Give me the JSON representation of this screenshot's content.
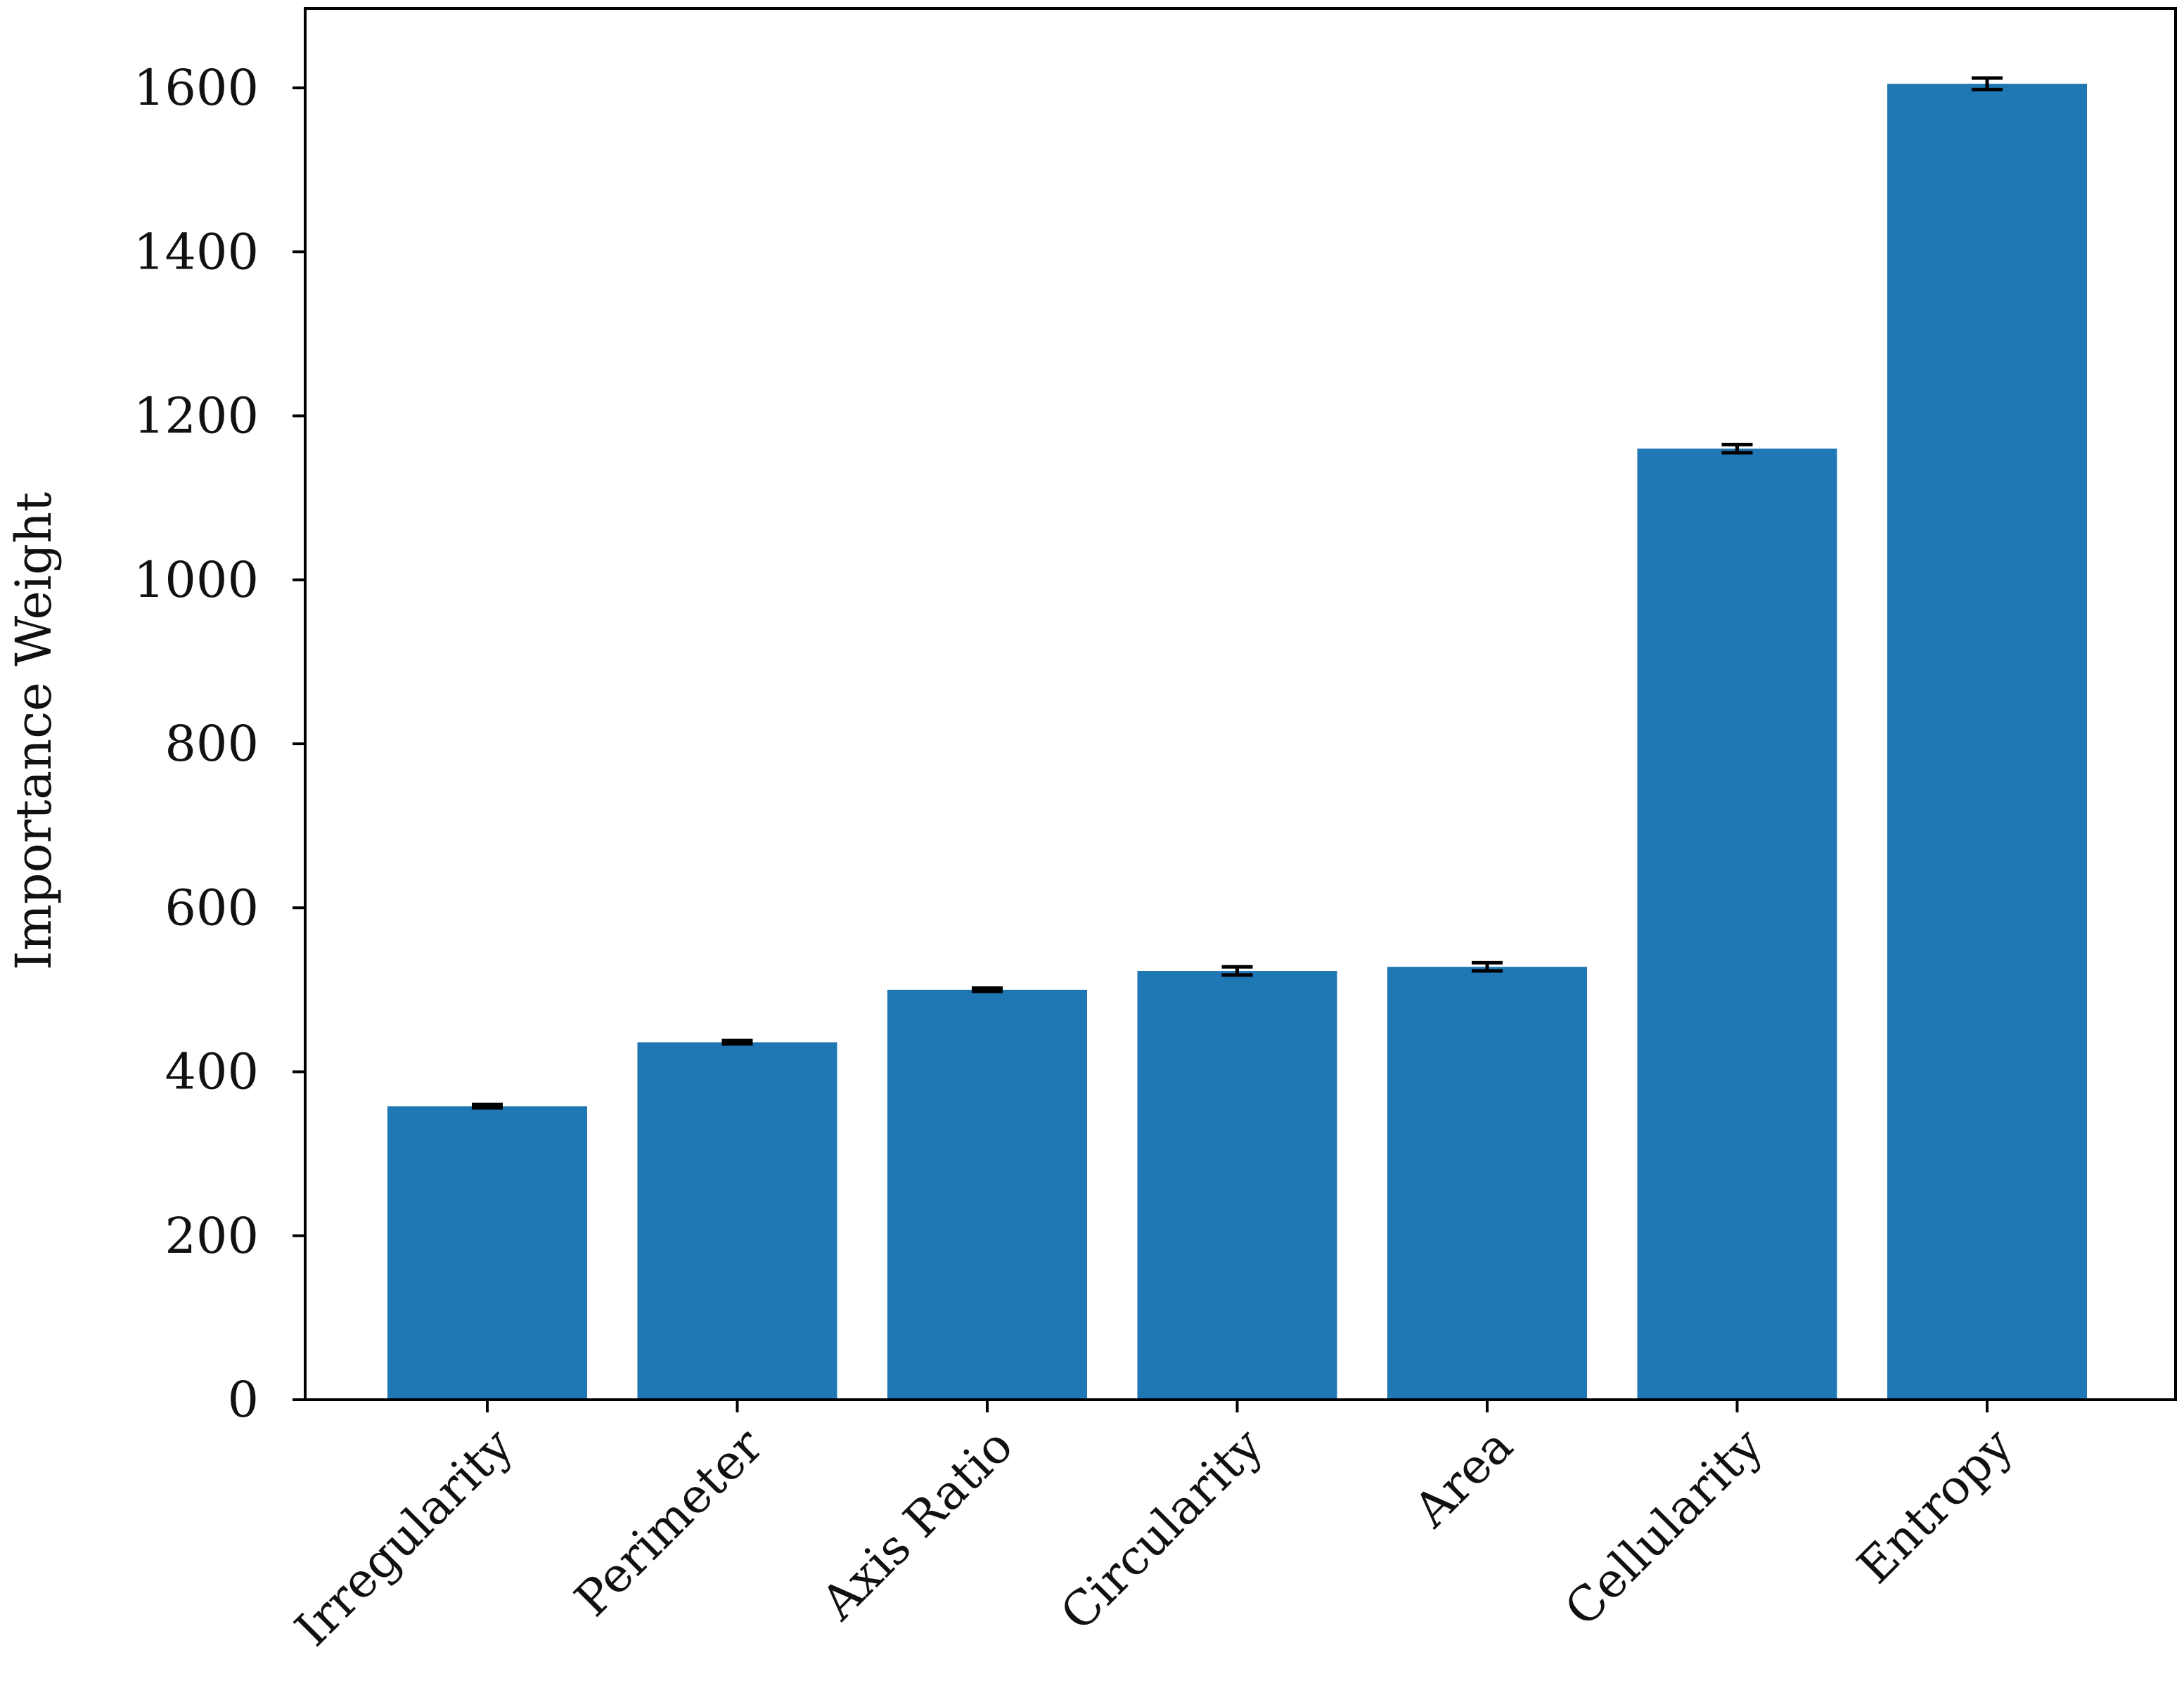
{
  "chart_data": {
    "type": "bar",
    "title": "",
    "xlabel": "",
    "ylabel": "Importance Weight",
    "categories": [
      "Irregularity",
      "Perimeter",
      "Axis Ratio",
      "Circularity",
      "Area",
      "Cellularity",
      "Entropy"
    ],
    "values": [
      358,
      436,
      500,
      523,
      528,
      1160,
      1605
    ],
    "errors": [
      2,
      2,
      2,
      5,
      5,
      5,
      7
    ],
    "ylim": [
      0,
      1640
    ],
    "yticks": [
      "0",
      "200",
      "400",
      "600",
      "800",
      "1000",
      "1200",
      "1400",
      "1600"
    ],
    "grid": false,
    "bar_color": "#1f77b4",
    "error_color": "#000000",
    "xtick_rotation_deg": 45
  }
}
